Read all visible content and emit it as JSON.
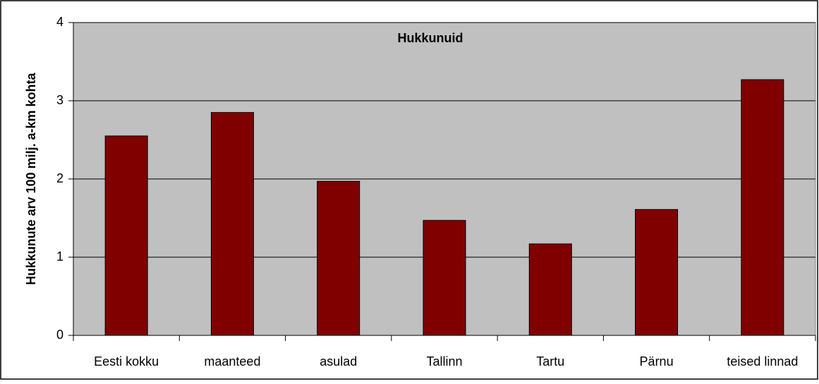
{
  "chart_data": {
    "type": "bar",
    "title": "Hukkunuid",
    "y_label": "Hukkunute arv 100 milj. a-km kohta",
    "categories": [
      "Eesti kokku",
      "maanteed",
      "asulad",
      "Tallinn",
      "Tartu",
      "Pärnu",
      "teised linnad"
    ],
    "values": [
      2.55,
      2.85,
      1.97,
      1.47,
      1.17,
      1.61,
      3.27
    ],
    "color": "#800000",
    "ylim": [
      0,
      4
    ],
    "yticks": [
      0,
      1,
      2,
      3,
      4
    ],
    "grid": true
  }
}
